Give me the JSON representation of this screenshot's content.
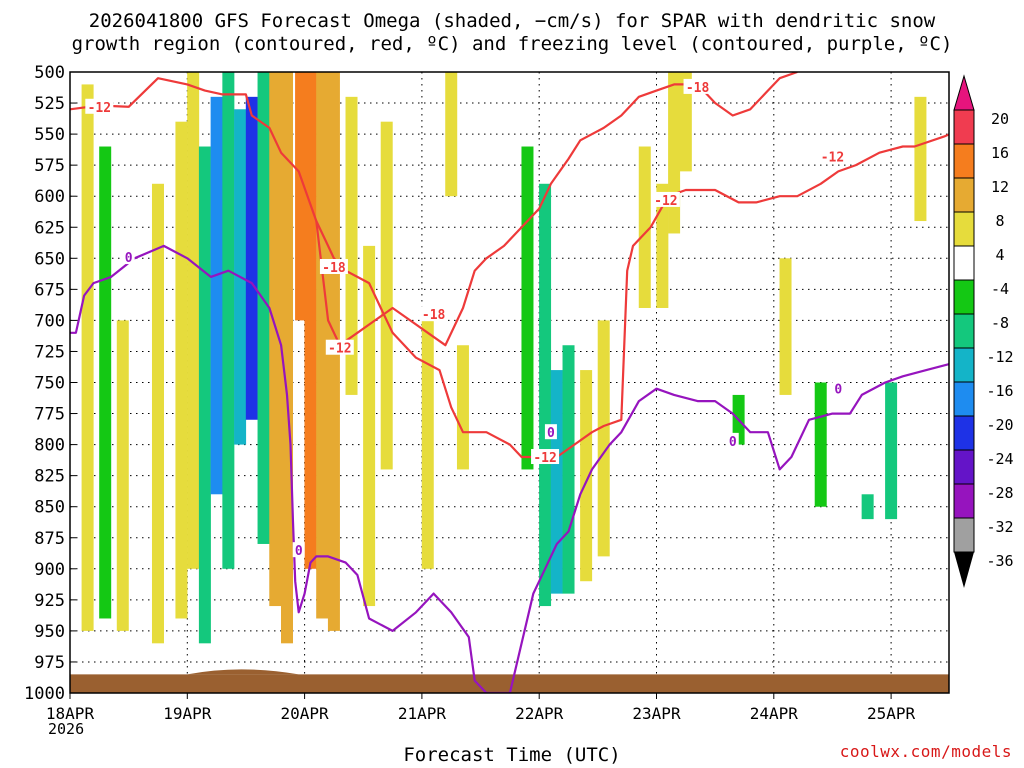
{
  "header": {
    "title_line1": "2026041800 GFS Forecast Omega (shaded, −cm/s) for SPAR with dendritic snow",
    "title_line2": "growth region (contoured, red, ºC) and freezing level (contoured, purple, ºC)"
  },
  "footer": {
    "xlabel": "Forecast Time (UTC)",
    "year": "2026",
    "credit": "coolwx.com/models"
  },
  "chart_data": {
    "type": "heatmap",
    "title": "2026041800 GFS Forecast Omega (shaded, −cm/s) for SPAR with dendritic snow growth region (contoured, red, ºC) and freezing level (contoured, purple, ºC)",
    "xlabel": "Forecast Time (UTC)",
    "ylabel": "",
    "x_ticks": [
      "18APR",
      "19APR",
      "20APR",
      "21APR",
      "22APR",
      "23APR",
      "24APR",
      "25APR"
    ],
    "x_range_days": [
      0,
      7.5
    ],
    "y_ticks": [
      500,
      525,
      550,
      575,
      600,
      625,
      650,
      675,
      700,
      725,
      750,
      775,
      800,
      825,
      850,
      875,
      900,
      925,
      950,
      975,
      1000
    ],
    "ylim": [
      500,
      1000
    ],
    "y_inverted": true,
    "grid": true,
    "colorbar": {
      "labels": [
        20,
        16,
        12,
        8,
        4,
        -4,
        -8,
        -12,
        -16,
        -20,
        -24,
        -28,
        -32,
        -36
      ],
      "colors": [
        "#f03c50",
        "#f57d1e",
        "#e6aa32",
        "#e6dc3c",
        "#ffffff",
        "#14c814",
        "#14c87d",
        "#14b4c8",
        "#1e8cf0",
        "#1e32e6",
        "#6414c8",
        "#9614be",
        "#a0a0a0"
      ],
      "top_arrow_color": "#e6147d",
      "bottom_arrow_color": "#000000"
    },
    "omega_regions": [
      {
        "day": 0.15,
        "top": 510,
        "bottom": 950,
        "value": 6
      },
      {
        "day": 0.3,
        "top": 560,
        "bottom": 940,
        "value": -6
      },
      {
        "day": 0.45,
        "top": 700,
        "bottom": 950,
        "value": 5
      },
      {
        "day": 0.75,
        "top": 590,
        "bottom": 960,
        "value": 5
      },
      {
        "day": 0.95,
        "top": 540,
        "bottom": 940,
        "value": 5
      },
      {
        "day": 1.05,
        "top": 500,
        "bottom": 900,
        "value": 6
      },
      {
        "day": 1.15,
        "top": 560,
        "bottom": 960,
        "value": -9
      },
      {
        "day": 1.25,
        "top": 520,
        "bottom": 840,
        "value": -17
      },
      {
        "day": 1.35,
        "top": 500,
        "bottom": 900,
        "value": -10
      },
      {
        "day": 1.45,
        "top": 530,
        "bottom": 800,
        "value": -14
      },
      {
        "day": 1.55,
        "top": 520,
        "bottom": 780,
        "value": -20
      },
      {
        "day": 1.65,
        "top": 500,
        "bottom": 880,
        "value": -9
      },
      {
        "day": 1.75,
        "top": 500,
        "bottom": 930,
        "value": 10
      },
      {
        "day": 1.85,
        "top": 500,
        "bottom": 960,
        "value": 9
      },
      {
        "day": 1.97,
        "top": 500,
        "bottom": 700,
        "value": 14
      },
      {
        "day": 2.05,
        "top": 500,
        "bottom": 900,
        "value": 12
      },
      {
        "day": 2.15,
        "top": 500,
        "bottom": 940,
        "value": 10
      },
      {
        "day": 2.25,
        "top": 500,
        "bottom": 950,
        "value": 8
      },
      {
        "day": 2.4,
        "top": 520,
        "bottom": 760,
        "value": 6
      },
      {
        "day": 2.55,
        "top": 640,
        "bottom": 930,
        "value": 6
      },
      {
        "day": 2.7,
        "top": 540,
        "bottom": 820,
        "value": 5
      },
      {
        "day": 3.05,
        "top": 700,
        "bottom": 900,
        "value": 5
      },
      {
        "day": 3.25,
        "top": 500,
        "bottom": 600,
        "value": 5
      },
      {
        "day": 3.35,
        "top": 720,
        "bottom": 820,
        "value": 6
      },
      {
        "day": 3.9,
        "top": 560,
        "bottom": 820,
        "value": -7
      },
      {
        "day": 4.05,
        "top": 590,
        "bottom": 930,
        "value": -8
      },
      {
        "day": 4.15,
        "top": 740,
        "bottom": 920,
        "value": -12
      },
      {
        "day": 4.25,
        "top": 720,
        "bottom": 920,
        "value": -9
      },
      {
        "day": 4.4,
        "top": 740,
        "bottom": 910,
        "value": 5
      },
      {
        "day": 4.55,
        "top": 700,
        "bottom": 890,
        "value": 6
      },
      {
        "day": 4.9,
        "top": 560,
        "bottom": 690,
        "value": 6
      },
      {
        "day": 5.05,
        "top": 590,
        "bottom": 690,
        "value": 7
      },
      {
        "day": 5.15,
        "top": 500,
        "bottom": 630,
        "value": 6
      },
      {
        "day": 5.25,
        "top": 500,
        "bottom": 580,
        "value": 5
      },
      {
        "day": 5.7,
        "top": 760,
        "bottom": 800,
        "value": -7
      },
      {
        "day": 6.1,
        "top": 650,
        "bottom": 760,
        "value": 5
      },
      {
        "day": 6.4,
        "top": 750,
        "bottom": 850,
        "value": -7
      },
      {
        "day": 6.8,
        "top": 840,
        "bottom": 860,
        "value": -8
      },
      {
        "day": 7.0,
        "top": 750,
        "bottom": 860,
        "value": -9
      },
      {
        "day": 7.25,
        "top": 520,
        "bottom": 620,
        "value": 5
      }
    ],
    "series": [
      {
        "name": "-12",
        "color": "#ee3a3a",
        "points": [
          [
            0,
            530
          ],
          [
            0.25,
            527
          ],
          [
            0.5,
            528
          ],
          [
            0.75,
            505
          ],
          [
            1.0,
            510
          ],
          [
            1.15,
            515
          ],
          [
            1.3,
            518
          ],
          [
            1.5,
            518
          ],
          [
            1.55,
            535
          ],
          [
            1.7,
            545
          ],
          [
            1.8,
            565
          ],
          [
            1.95,
            580
          ],
          [
            2.1,
            620
          ],
          [
            2.2,
            640
          ],
          [
            2.25,
            650
          ],
          [
            2.35,
            660
          ],
          [
            2.45,
            665
          ],
          [
            2.55,
            670
          ],
          [
            2.65,
            690
          ],
          [
            2.75,
            710
          ],
          [
            2.95,
            730
          ],
          [
            3.15,
            740
          ],
          [
            3.25,
            770
          ],
          [
            3.35,
            790
          ],
          [
            3.55,
            790
          ],
          [
            3.75,
            800
          ],
          [
            3.85,
            810
          ],
          [
            4.0,
            810
          ],
          [
            4.15,
            810
          ],
          [
            4.3,
            800
          ],
          [
            4.45,
            790
          ],
          [
            4.55,
            785
          ],
          [
            4.7,
            780
          ],
          [
            4.75,
            660
          ],
          [
            4.8,
            640
          ],
          [
            4.95,
            625
          ],
          [
            5.1,
            600
          ],
          [
            5.25,
            595
          ],
          [
            5.5,
            595
          ],
          [
            5.7,
            605
          ],
          [
            5.85,
            605
          ],
          [
            6.05,
            600
          ],
          [
            6.2,
            600
          ],
          [
            6.4,
            590
          ],
          [
            6.55,
            580
          ],
          [
            6.7,
            575
          ],
          [
            6.9,
            565
          ],
          [
            7.1,
            560
          ],
          [
            7.2,
            560
          ],
          [
            7.45,
            552
          ],
          [
            7.5,
            550
          ]
        ]
      },
      {
        "name": "-18",
        "color": "#ee3a3a",
        "points": [
          [
            2.1,
            620
          ],
          [
            2.15,
            660
          ],
          [
            2.2,
            700
          ],
          [
            2.3,
            720
          ],
          [
            2.45,
            710
          ],
          [
            2.6,
            700
          ],
          [
            2.75,
            690
          ],
          [
            2.9,
            700
          ],
          [
            3.05,
            710
          ],
          [
            3.2,
            720
          ],
          [
            3.35,
            690
          ],
          [
            3.45,
            660
          ],
          [
            3.55,
            650
          ],
          [
            3.7,
            640
          ],
          [
            3.8,
            630
          ],
          [
            3.9,
            620
          ],
          [
            4.0,
            610
          ],
          [
            4.1,
            590
          ],
          [
            4.25,
            570
          ],
          [
            4.35,
            555
          ],
          [
            4.55,
            545
          ],
          [
            4.7,
            535
          ],
          [
            4.85,
            520
          ],
          [
            5.0,
            515
          ],
          [
            5.15,
            510
          ],
          [
            5.35,
            510
          ],
          [
            5.5,
            525
          ],
          [
            5.65,
            535
          ],
          [
            5.8,
            530
          ],
          [
            5.95,
            515
          ],
          [
            6.05,
            505
          ],
          [
            6.2,
            500
          ]
        ]
      },
      {
        "name": "0",
        "color": "#9614be",
        "points": [
          [
            0,
            710
          ],
          [
            0.05,
            710
          ],
          [
            0.12,
            680
          ],
          [
            0.2,
            670
          ],
          [
            0.35,
            665
          ],
          [
            0.55,
            650
          ],
          [
            0.8,
            640
          ],
          [
            1.0,
            650
          ],
          [
            1.2,
            665
          ],
          [
            1.35,
            660
          ],
          [
            1.55,
            670
          ],
          [
            1.7,
            690
          ],
          [
            1.8,
            720
          ],
          [
            1.85,
            760
          ],
          [
            1.88,
            800
          ],
          [
            1.9,
            860
          ],
          [
            1.92,
            910
          ],
          [
            1.95,
            935
          ],
          [
            2.0,
            920
          ],
          [
            2.05,
            895
          ],
          [
            2.1,
            890
          ],
          [
            2.2,
            890
          ],
          [
            2.35,
            895
          ],
          [
            2.45,
            905
          ],
          [
            2.55,
            940
          ],
          [
            2.75,
            950
          ],
          [
            2.95,
            935
          ],
          [
            3.1,
            920
          ],
          [
            3.25,
            935
          ],
          [
            3.4,
            955
          ],
          [
            3.45,
            990
          ],
          [
            3.55,
            1000
          ],
          [
            3.65,
            1000
          ],
          [
            3.75,
            1000
          ],
          [
            3.85,
            960
          ],
          [
            3.95,
            920
          ],
          [
            4.05,
            900
          ],
          [
            4.15,
            880
          ],
          [
            4.25,
            870
          ],
          [
            4.35,
            840
          ],
          [
            4.45,
            820
          ],
          [
            4.6,
            800
          ],
          [
            4.7,
            790
          ],
          [
            4.85,
            765
          ],
          [
            5.0,
            755
          ],
          [
            5.15,
            760
          ],
          [
            5.35,
            765
          ],
          [
            5.5,
            765
          ],
          [
            5.65,
            775
          ],
          [
            5.8,
            790
          ],
          [
            5.95,
            790
          ],
          [
            6.05,
            820
          ],
          [
            6.15,
            810
          ],
          [
            6.3,
            780
          ],
          [
            6.5,
            775
          ],
          [
            6.65,
            775
          ],
          [
            6.75,
            760
          ],
          [
            6.95,
            750
          ],
          [
            7.1,
            745
          ],
          [
            7.3,
            740
          ],
          [
            7.5,
            735
          ]
        ]
      }
    ],
    "contour_labels": [
      {
        "text": "-12",
        "day": 0.25,
        "p": 528
      },
      {
        "text": "-12",
        "day": 6.5,
        "p": 568
      },
      {
        "text": "-12",
        "day": 5.08,
        "p": 603
      },
      {
        "text": "-12",
        "day": 2.3,
        "p": 722
      },
      {
        "text": "-12",
        "day": 4.05,
        "p": 810
      },
      {
        "text": "-18",
        "day": 2.25,
        "p": 657
      },
      {
        "text": "-18",
        "day": 3.1,
        "p": 695
      },
      {
        "text": "-18",
        "day": 5.35,
        "p": 512
      },
      {
        "text": "0",
        "day": 0.5,
        "p": 649
      },
      {
        "text": "0",
        "day": 1.95,
        "p": 885
      },
      {
        "text": "0",
        "day": 4.1,
        "p": 790
      },
      {
        "text": "0",
        "day": 5.65,
        "p": 797
      },
      {
        "text": "0",
        "day": 6.55,
        "p": 755
      }
    ],
    "terrain": {
      "color": "#9a6030",
      "surface_p": 985
    }
  }
}
